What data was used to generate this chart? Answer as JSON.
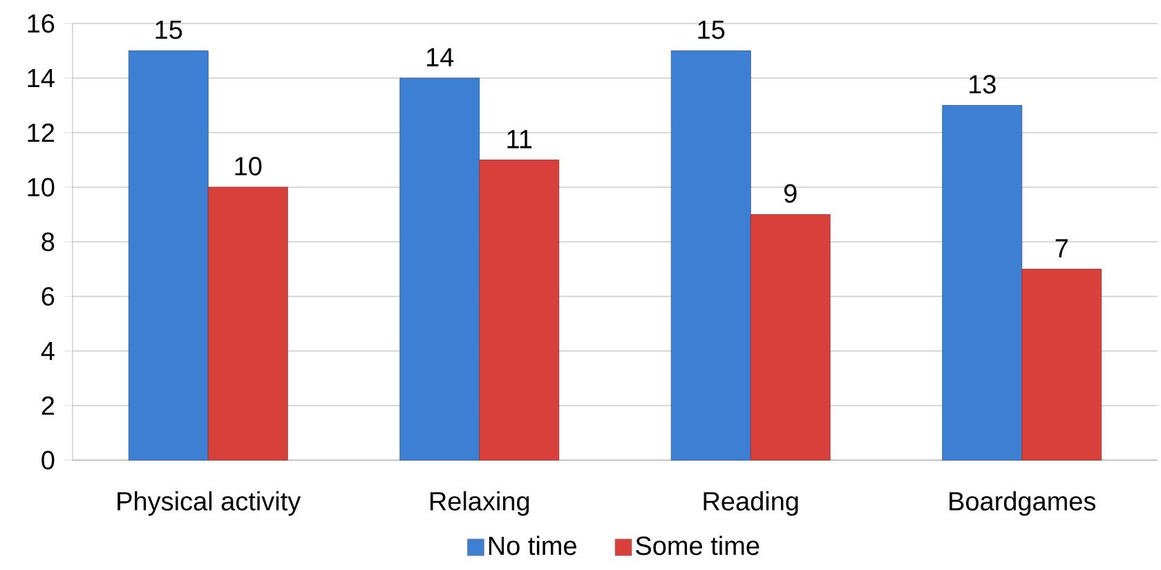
{
  "chart_data": {
    "type": "bar",
    "categories": [
      "Physical activity",
      "Relaxing",
      "Reading",
      "Boardgames"
    ],
    "series": [
      {
        "name": "No time",
        "color": "#3d7fd3",
        "values": [
          15,
          14,
          15,
          13
        ]
      },
      {
        "name": "Some time",
        "color": "#d8403b",
        "values": [
          10,
          11,
          9,
          7
        ]
      }
    ],
    "ylim": [
      0,
      16
    ],
    "yticks": [
      0,
      2,
      4,
      6,
      8,
      10,
      12,
      14,
      16
    ],
    "grid": "y",
    "legend": "bottom",
    "data_labels": true
  }
}
